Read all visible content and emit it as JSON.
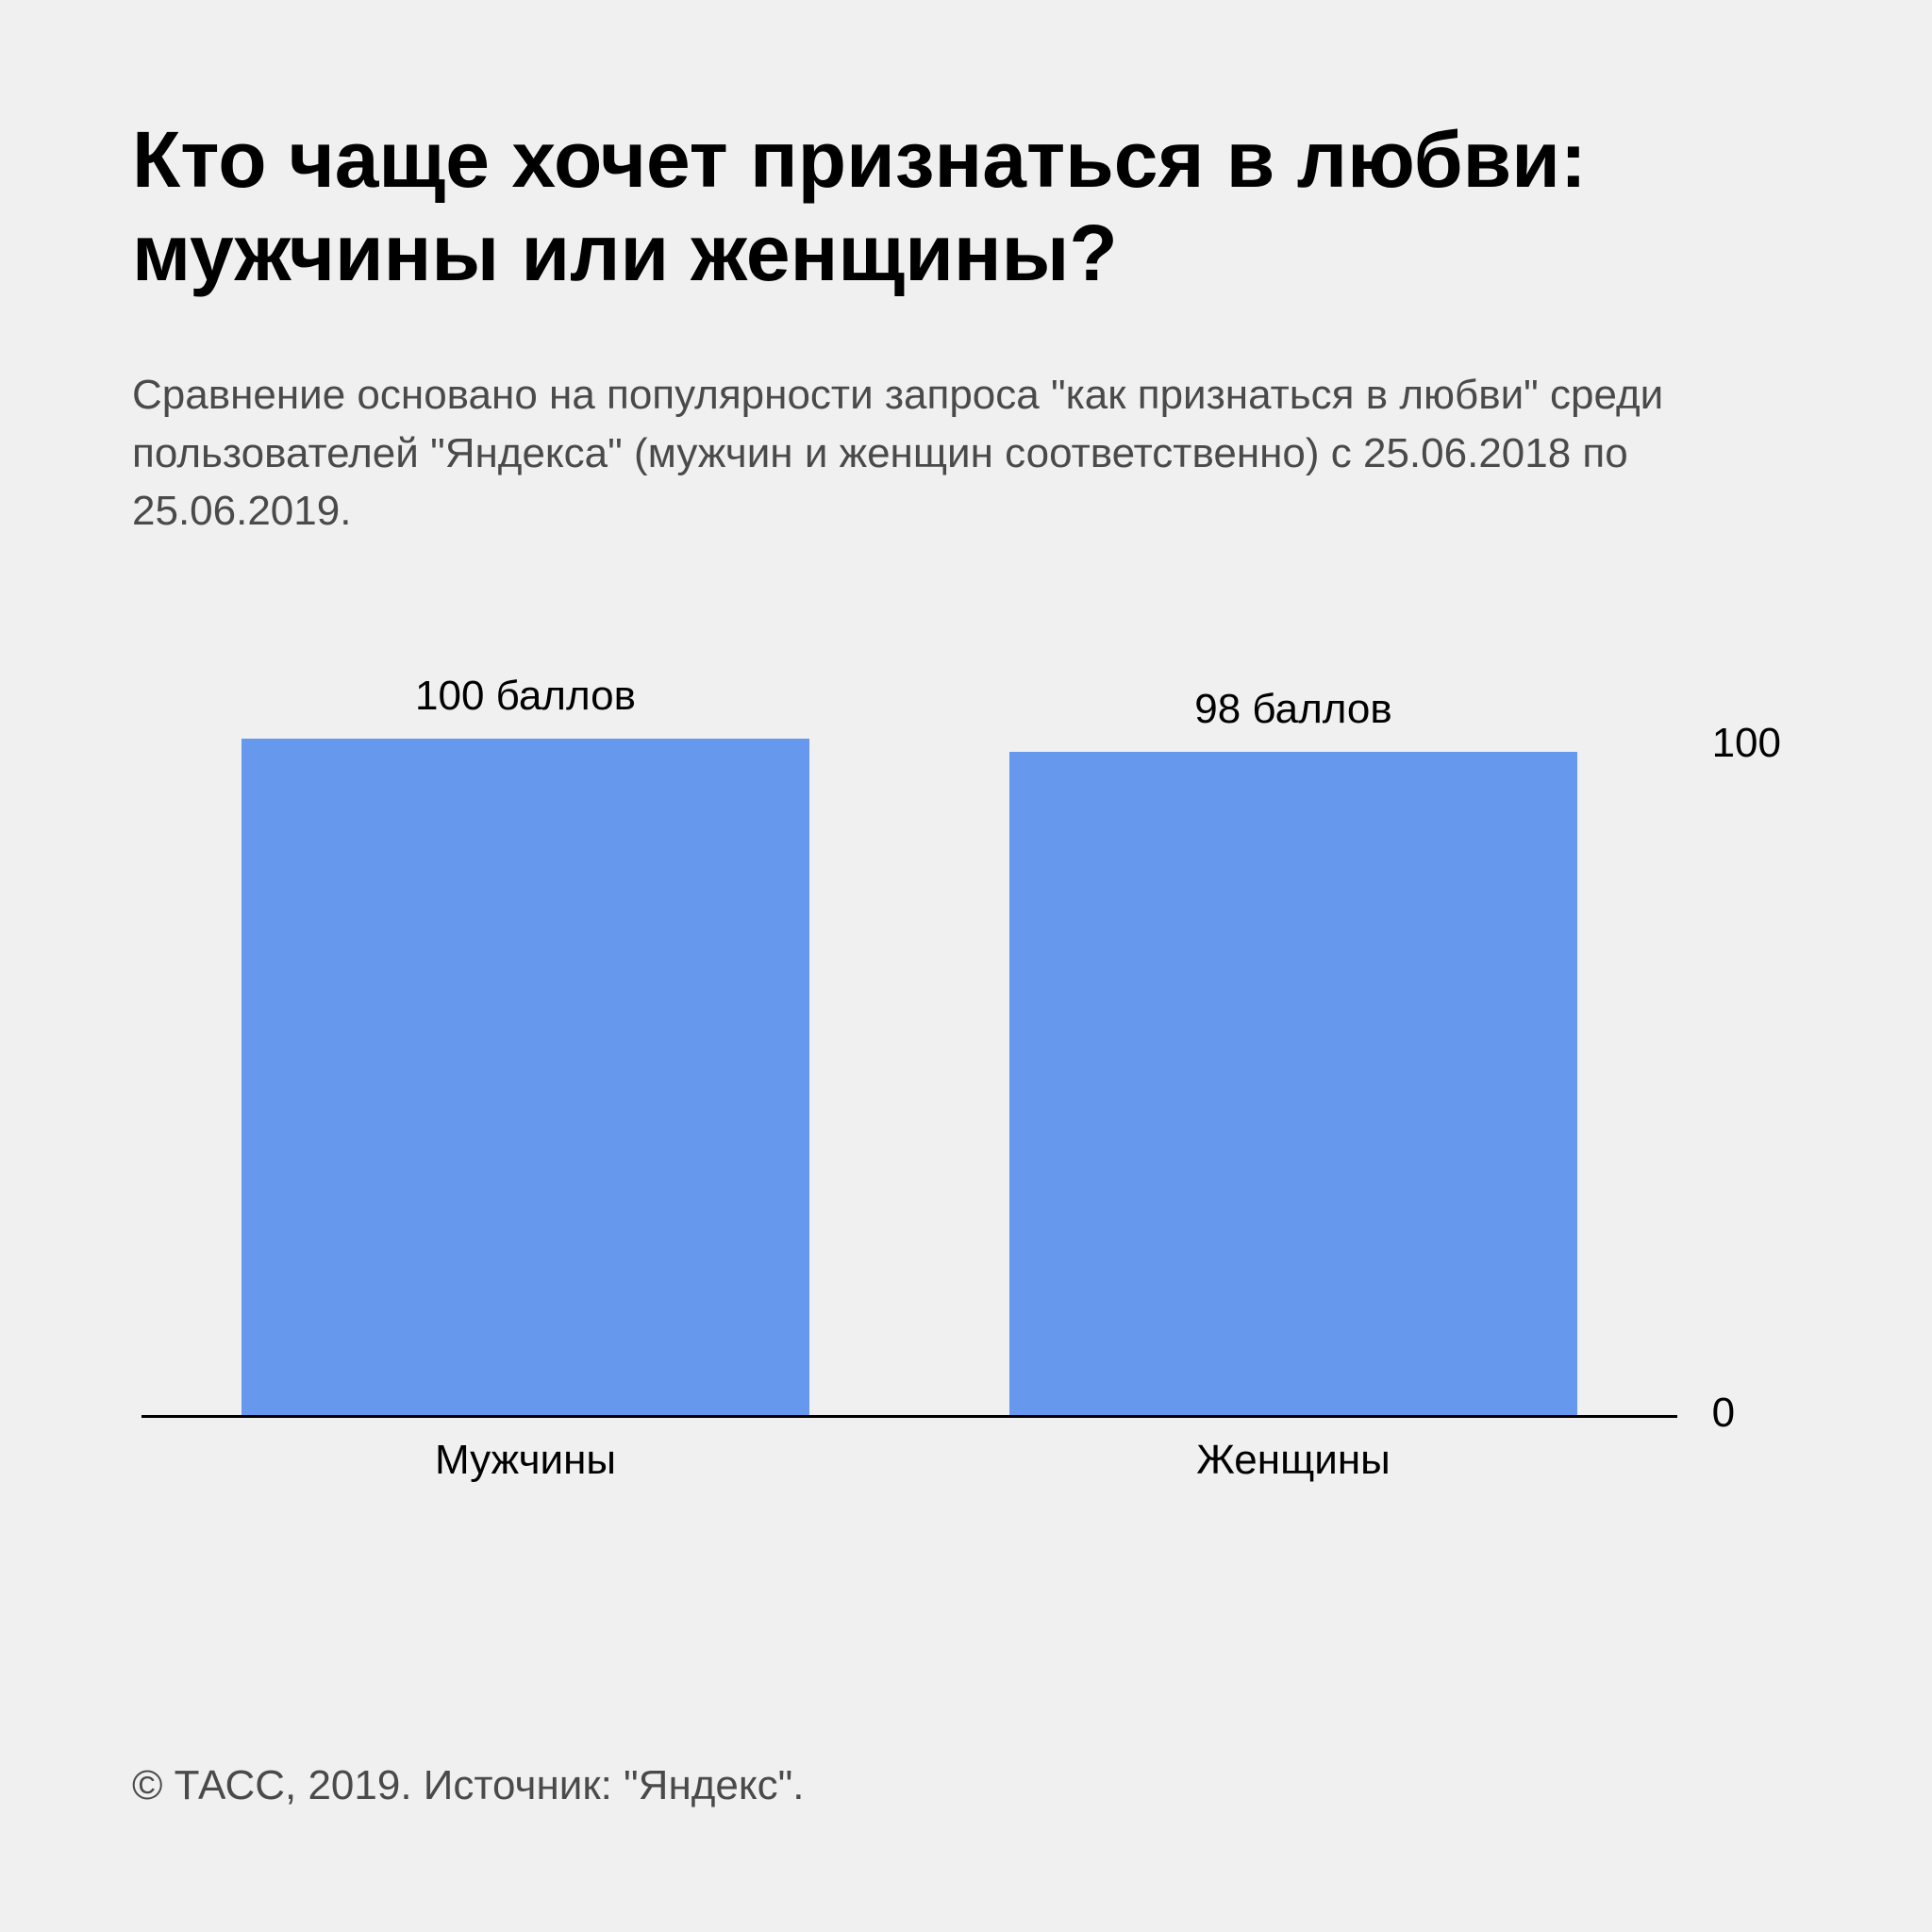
{
  "title": "Кто чаще хочет признаться в любви: мужчины или женщины?",
  "subtitle": "Сравнение основано на популярности запроса \"как признаться в любви\" среди пользователей \"Яндекса\" (мужчин и женщин соответственно) с 25.06.2018 по 25.06.2019.",
  "chart": {
    "type": "bar",
    "categories": [
      "Мужчины",
      "Женщины"
    ],
    "values": [
      100,
      98
    ],
    "value_labels": [
      "100 баллов",
      "98 баллов"
    ],
    "bar_colors": [
      "#6699ee",
      "#6699ee"
    ],
    "background_color": "#f0f0f0",
    "axis_color": "#000000",
    "ylim": [
      0,
      100
    ],
    "y_ticks": [
      100,
      0
    ],
    "bar_width": 0.77,
    "title_fontsize": 84,
    "label_fontsize": 44,
    "value_fontsize": 44
  },
  "footer": "© ТАСС, 2019. Источник: \"Яндекс\"."
}
